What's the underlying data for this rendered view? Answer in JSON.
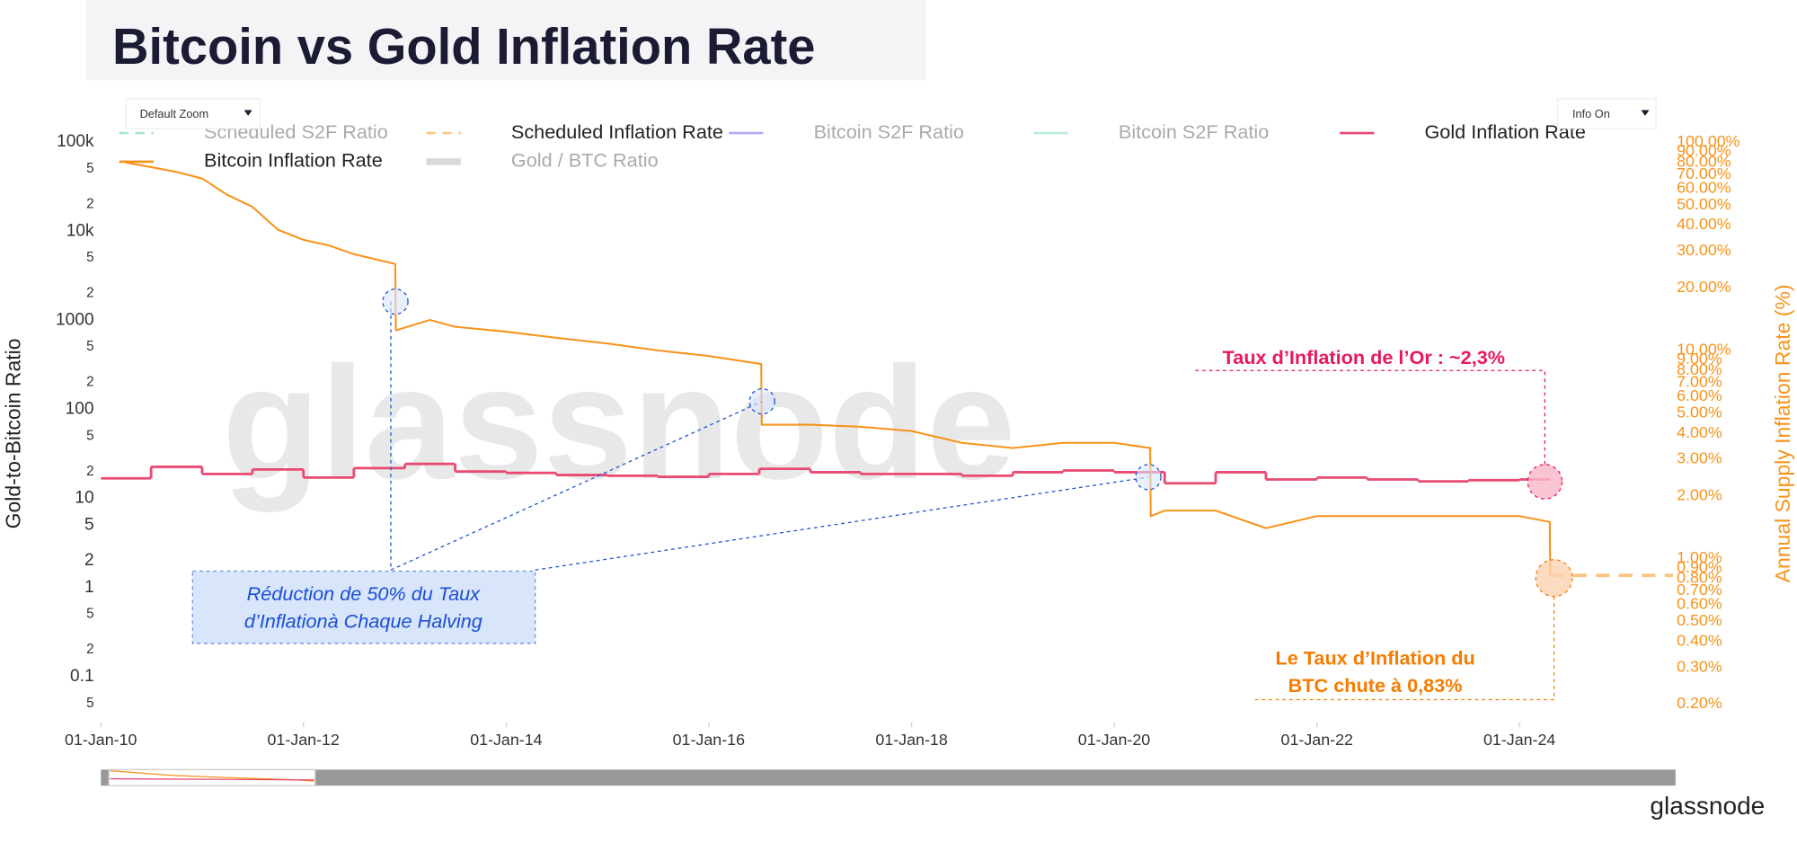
{
  "chart_data": {
    "type": "line",
    "title": "Bitcoin vs Gold Inflation Rate",
    "y_label": "Gold-to-Bitcoin Ratio",
    "y2_label": "Annual Supply Inflation Rate (%)",
    "log_y": true,
    "log_y2": true,
    "xlim": [
      "2010-01-01",
      "2025-07-08"
    ],
    "xticks": [
      {
        "value": "2010-01-01",
        "label": "01-Jan-10"
      },
      {
        "value": "2012-01-01",
        "label": "01-Jan-12"
      },
      {
        "value": "2014-01-01",
        "label": "01-Jan-14"
      },
      {
        "value": "2016-01-01",
        "label": "01-Jan-16"
      },
      {
        "value": "2018-01-01",
        "label": "01-Jan-18"
      },
      {
        "value": "2020-01-01",
        "label": "01-Jan-20"
      },
      {
        "value": "2022-01-01",
        "label": "01-Jan-22"
      },
      {
        "value": "2024-01-01",
        "label": "01-Jan-24"
      }
    ],
    "ylim": [
      0.0305,
      119000
    ],
    "yticks": [
      {
        "value": 100000,
        "label": "100k"
      },
      {
        "value": 50000,
        "label": "5"
      },
      {
        "value": 20000,
        "label": "2"
      },
      {
        "value": 10000,
        "label": "10k"
      },
      {
        "value": 5000,
        "label": "5"
      },
      {
        "value": 2000,
        "label": "2"
      },
      1000,
      {
        "value": 500,
        "label": "5"
      },
      {
        "value": 200,
        "label": "2"
      },
      100,
      {
        "value": 50,
        "label": "5"
      },
      {
        "value": 20,
        "label": "2"
      },
      10,
      5,
      2,
      1,
      {
        "value": 0.5,
        "label": "5"
      },
      {
        "value": 0.2,
        "label": "2"
      },
      0.1,
      {
        "value": 0.05,
        "label": "5"
      }
    ],
    "y2lim": [
      0.163,
      108
    ],
    "y2ticks": [
      {
        "value": 100,
        "label": "100.00%"
      },
      {
        "value": 90,
        "label": "90.00%"
      },
      {
        "value": 80,
        "label": "80.00%"
      },
      {
        "value": 70,
        "label": "70.00%"
      },
      {
        "value": 60,
        "label": "60.00%"
      },
      {
        "value": 50,
        "label": "50.00%"
      },
      {
        "value": 40,
        "label": "40.00%"
      },
      {
        "value": 30,
        "label": "30.00%"
      },
      {
        "value": 20,
        "label": "20.00%"
      },
      {
        "value": 10,
        "label": "10.00%"
      },
      {
        "value": 9,
        "label": "9.00%"
      },
      {
        "value": 8,
        "label": "8.00%"
      },
      {
        "value": 7,
        "label": "7.00%"
      },
      {
        "value": 6,
        "label": "6.00%"
      },
      {
        "value": 5,
        "label": "5.00%"
      },
      {
        "value": 4,
        "label": "4.00%"
      },
      {
        "value": 3,
        "label": "3.00%"
      },
      {
        "value": 2,
        "label": "2.00%"
      },
      {
        "value": 1,
        "label": "1.00%"
      },
      {
        "value": 0.9,
        "label": "0.90%"
      },
      {
        "value": 0.8,
        "label": "0.80%"
      },
      {
        "value": 0.7,
        "label": "0.70%"
      },
      {
        "value": 0.6,
        "label": "0.60%"
      },
      {
        "value": 0.5,
        "label": "0.50%"
      },
      {
        "value": 0.4,
        "label": "0.40%"
      },
      {
        "value": 0.3,
        "label": "0.30%"
      },
      {
        "value": 0.2,
        "label": "0.20%"
      }
    ],
    "y2_color": "#f7931a",
    "series": [
      {
        "name": "Scheduled S2F Ratio",
        "color": "#a8e6cf",
        "dash": true,
        "visible": false
      },
      {
        "name": "Scheduled Inflation Rate",
        "color": "#fbc483",
        "dash": true,
        "visible": true,
        "axis": "y2",
        "x": [
          "2024-04-20",
          "2025-07-08"
        ],
        "values": [
          0.83,
          0.83
        ]
      },
      {
        "name": "Bitcoin S2F Ratio",
        "color": "#b7a9f5",
        "dash": false,
        "visible": false
      },
      {
        "name": "Bitcoin S2F Ratio",
        "color": "#b9ecd9",
        "dash": false,
        "visible": false
      },
      {
        "name": "Gold Inflation Rate",
        "color": "#e84a72",
        "dash": false,
        "visible": true,
        "axis": "y2",
        "step": true,
        "x": [
          "2010-01-01",
          "2010-07-01",
          "2011-01-01",
          "2011-07-01",
          "2012-01-01",
          "2012-07-01",
          "2013-01-01",
          "2013-07-01",
          "2014-01-01",
          "2014-07-01",
          "2015-01-01",
          "2015-07-01",
          "2016-01-01",
          "2016-07-01",
          "2017-01-01",
          "2017-07-01",
          "2018-01-01",
          "2018-07-01",
          "2019-01-01",
          "2019-07-01",
          "2020-01-01",
          "2020-07-01",
          "2021-01-01",
          "2021-07-01",
          "2022-01-01",
          "2022-07-01",
          "2023-01-01",
          "2023-07-01",
          "2024-01-01"
        ],
        "values": [
          2.43,
          2.76,
          2.55,
          2.68,
          2.45,
          2.72,
          2.85,
          2.62,
          2.58,
          2.52,
          2.5,
          2.47,
          2.55,
          2.7,
          2.6,
          2.55,
          2.55,
          2.5,
          2.6,
          2.65,
          2.6,
          2.3,
          2.6,
          2.4,
          2.45,
          2.4,
          2.35,
          2.38,
          2.4
        ]
      },
      {
        "name": "Bitcoin Inflation Rate",
        "color": "#f7931a",
        "dash": false,
        "visible": true,
        "axis": "y2",
        "x": [
          "2010-04-01",
          "2010-07-01",
          "2010-10-01",
          "2011-01-01",
          "2011-04-01",
          "2011-07-01",
          "2011-10-01",
          "2012-01-01",
          "2012-04-01",
          "2012-07-01",
          "2012-11-27",
          "2012-11-29",
          "2013-04-01",
          "2013-07-01",
          "2014-01-01",
          "2014-07-01",
          "2015-01-01",
          "2015-07-01",
          "2016-01-01",
          "2016-07-08",
          "2016-07-10",
          "2017-01-01",
          "2017-07-01",
          "2018-01-01",
          "2018-07-01",
          "2019-01-01",
          "2019-07-01",
          "2020-01-01",
          "2020-05-10",
          "2020-05-12",
          "2020-07-01",
          "2021-01-01",
          "2021-07-01",
          "2022-01-01",
          "2022-07-01",
          "2023-01-01",
          "2023-07-01",
          "2024-01-01",
          "2024-04-19",
          "2024-04-21"
        ],
        "values": [
          80,
          76,
          72,
          67,
          56,
          49,
          38,
          34,
          32,
          29,
          26,
          12.5,
          14,
          13,
          12.3,
          11.5,
          10.8,
          10,
          9.4,
          8.6,
          4.4,
          4.4,
          4.3,
          4.1,
          3.6,
          3.4,
          3.6,
          3.6,
          3.4,
          1.6,
          1.7,
          1.7,
          1.4,
          1.6,
          1.6,
          1.6,
          1.6,
          1.6,
          1.5,
          0.83
        ]
      },
      {
        "name": "Gold / BTC Ratio",
        "color": "#d9d9d9",
        "dash": false,
        "visible": false
      }
    ],
    "annotations": [
      {
        "lines": [
          "Réduction de 50% du Taux",
          "d’Inflationà Chaque Halving"
        ],
        "color": "#1a4fd6"
      },
      {
        "lines": [
          "Taux d’Inflation de l’Or : ~2,3%"
        ],
        "color": "#e8185e"
      },
      {
        "lines": [
          "Le Taux d’Inflation du",
          "BTC chute à 0,83%"
        ],
        "color": "#f57c00"
      }
    ],
    "watermark": "glassnode"
  },
  "controls": {
    "zoom": "Default Zoom",
    "info": "Info On"
  },
  "logo": "glassnode"
}
